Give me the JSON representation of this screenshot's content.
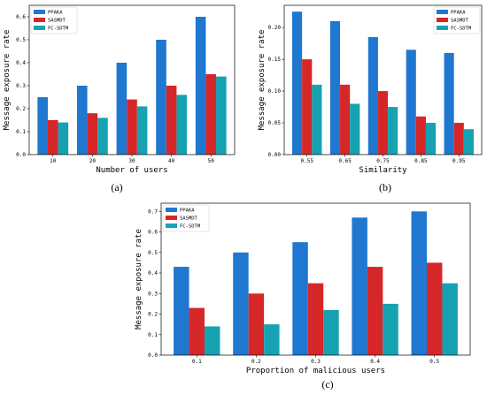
{
  "chart_data": [
    {
      "type": "bar",
      "caption": "(a)",
      "xlabel": "Number of users",
      "ylabel": "Message exposure rate",
      "categories": [
        "10",
        "20",
        "30",
        "40",
        "50"
      ],
      "ylim": [
        0,
        0.65
      ],
      "yticks": [
        "0.0",
        "0.1",
        "0.2",
        "0.3",
        "0.4",
        "0.5",
        "0.6"
      ],
      "legend_position": "top-left",
      "series": [
        {
          "name": "PPAKA",
          "color": "#1f77d0",
          "values": [
            0.25,
            0.3,
            0.4,
            0.5,
            0.6
          ]
        },
        {
          "name": "SASMDT",
          "color": "#d62728",
          "values": [
            0.15,
            0.18,
            0.24,
            0.3,
            0.35
          ]
        },
        {
          "name": "FC-SDTM",
          "color": "#17a2b2",
          "values": [
            0.14,
            0.16,
            0.21,
            0.26,
            0.34
          ]
        }
      ]
    },
    {
      "type": "bar",
      "caption": "(b)",
      "xlabel": "Similarity",
      "ylabel": "Message exposure rate",
      "categories": [
        "0.55",
        "0.65",
        "0.75",
        "0.85",
        "0.95"
      ],
      "ylim": [
        0,
        0.235
      ],
      "yticks": [
        "0.00",
        "0.05",
        "0.10",
        "0.15",
        "0.20"
      ],
      "legend_position": "top-right",
      "series": [
        {
          "name": "PPAKA",
          "color": "#1f77d0",
          "values": [
            0.225,
            0.21,
            0.185,
            0.165,
            0.16
          ]
        },
        {
          "name": "SASMDT",
          "color": "#d62728",
          "values": [
            0.15,
            0.11,
            0.1,
            0.06,
            0.05
          ]
        },
        {
          "name": "FC-SDTM",
          "color": "#17a2b2",
          "values": [
            0.11,
            0.08,
            0.075,
            0.05,
            0.04
          ]
        }
      ]
    },
    {
      "type": "bar",
      "caption": "(c)",
      "xlabel": "Proportion of malicious users",
      "ylabel": "Message exposure rate",
      "categories": [
        "0.1",
        "0.2",
        "0.3",
        "0.4",
        "0.5"
      ],
      "ylim": [
        0,
        0.74
      ],
      "yticks": [
        "0.0",
        "0.1",
        "0.2",
        "0.3",
        "0.4",
        "0.5",
        "0.6",
        "0.7"
      ],
      "legend_position": "top-left",
      "series": [
        {
          "name": "PPAKA",
          "color": "#1f77d0",
          "values": [
            0.43,
            0.5,
            0.55,
            0.67,
            0.7
          ]
        },
        {
          "name": "SASMDT",
          "color": "#d62728",
          "values": [
            0.23,
            0.3,
            0.35,
            0.43,
            0.45
          ]
        },
        {
          "name": "FC-SDTM",
          "color": "#17a2b2",
          "values": [
            0.14,
            0.15,
            0.22,
            0.25,
            0.35
          ]
        }
      ]
    }
  ]
}
